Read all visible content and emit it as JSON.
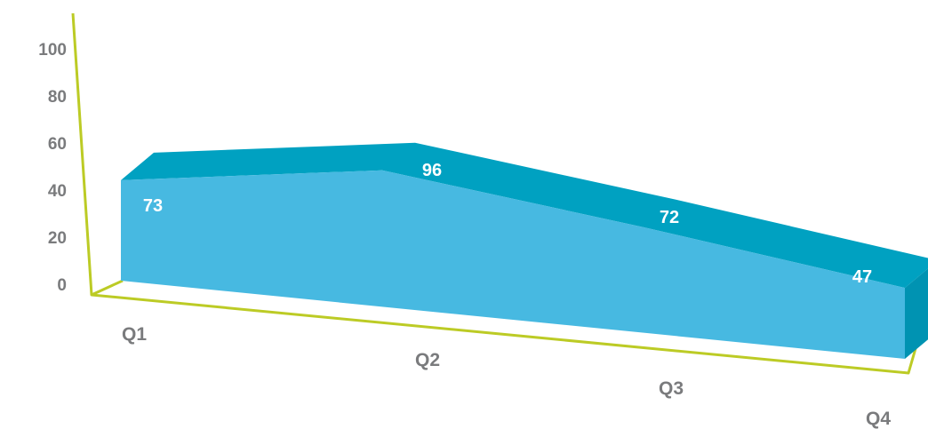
{
  "colors": {
    "front": "#47b9e1",
    "top": "#00a1c1",
    "side": "#0093b2",
    "axis": "#bccb25",
    "label": "#7a7b7d"
  },
  "chart_data": {
    "type": "area",
    "title": "",
    "xlabel": "",
    "ylabel": "",
    "categories": [
      "Q1",
      "Q2",
      "Q3",
      "Q4"
    ],
    "series": [
      {
        "values": [
          73,
          96,
          72,
          47
        ]
      }
    ],
    "y_ticks": [
      "0",
      "20",
      "40",
      "60",
      "80",
      "100"
    ],
    "data_labels": [
      "73",
      "96",
      "72",
      "47"
    ],
    "ylim": [
      0,
      100
    ],
    "grid": false,
    "legend": "none",
    "style": "3d-perspective"
  }
}
